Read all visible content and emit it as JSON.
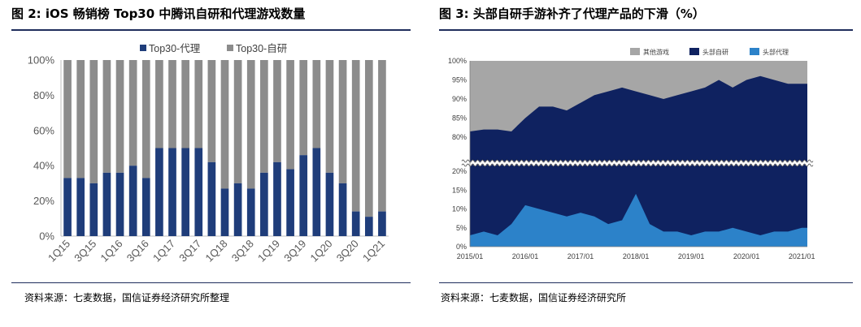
{
  "left": {
    "title": "图 2:  iOS 畅销榜 Top30 中腾讯自研和代理游戏数量",
    "source": "资料来源：七麦数据，国信证券经济研究所整理",
    "colors": {
      "agency": "#1f3d7a",
      "self": "#8c8c8c"
    }
  },
  "right": {
    "title": "图 3:  头部自研手游补齐了代理产品的下滑（%）",
    "source": "资料来源：七麦数据，国信证券经济研究所",
    "colors": {
      "other": "#a6a6a6",
      "self": "#0f2260",
      "agency": "#2c82c9"
    }
  },
  "chart_data": [
    {
      "type": "bar",
      "stacked": true,
      "categories": [
        "1Q15",
        "2Q15",
        "3Q15",
        "4Q15",
        "1Q16",
        "2Q16",
        "3Q16",
        "4Q16",
        "1Q17",
        "2Q17",
        "3Q17",
        "4Q17",
        "1Q18",
        "2Q18",
        "3Q18",
        "4Q18",
        "1Q19",
        "2Q19",
        "3Q19",
        "4Q19",
        "1Q20",
        "2Q20",
        "3Q20",
        "4Q20",
        "1Q21"
      ],
      "x_tick_labels": [
        "1Q15",
        "3Q15",
        "1Q16",
        "3Q16",
        "1Q17",
        "3Q17",
        "1Q18",
        "3Q18",
        "1Q19",
        "3Q19",
        "1Q20",
        "3Q20",
        "1Q21"
      ],
      "series": [
        {
          "name": "Top30-代理",
          "values": [
            33,
            33,
            30,
            36,
            36,
            40,
            33,
            50,
            50,
            50,
            50,
            42,
            27,
            30,
            27,
            36,
            42,
            38,
            46,
            50,
            36,
            30,
            14,
            11,
            14
          ]
        },
        {
          "name": "Top30-自研",
          "values": [
            67,
            67,
            70,
            64,
            64,
            60,
            67,
            50,
            50,
            50,
            50,
            58,
            73,
            70,
            73,
            64,
            58,
            62,
            54,
            50,
            64,
            70,
            86,
            89,
            86
          ]
        }
      ],
      "y_ticks": [
        "0%",
        "20%",
        "40%",
        "60%",
        "80%",
        "100%"
      ],
      "ylim": [
        0,
        100
      ],
      "legend": "top"
    },
    {
      "type": "area",
      "stacked": true,
      "broken_axis": true,
      "x_tick_labels": [
        "2015/01",
        "2016/01",
        "2017/01",
        "2018/01",
        "2019/01",
        "2020/01",
        "2021/01"
      ],
      "y_ticks_upper": [
        "80%",
        "85%",
        "90%",
        "95%",
        "100%"
      ],
      "y_ticks_lower": [
        "0%",
        "5%",
        "10%",
        "15%",
        "20%"
      ],
      "legend": "top",
      "legend_labels": [
        "其他游戏",
        "头部自研",
        "头部代理"
      ],
      "x": [
        2015.0,
        2015.25,
        2015.5,
        2015.75,
        2016.0,
        2016.25,
        2016.5,
        2016.75,
        2017.0,
        2017.25,
        2017.5,
        2017.75,
        2018.0,
        2018.25,
        2018.5,
        2018.75,
        2019.0,
        2019.25,
        2019.5,
        2019.75,
        2020.0,
        2020.25,
        2020.5,
        2020.75,
        2021.0,
        2021.1
      ],
      "series": [
        {
          "name": "头部代理",
          "values": [
            3,
            4,
            3,
            6,
            11,
            10,
            9,
            8,
            9,
            8,
            6,
            7,
            14,
            6,
            4,
            4,
            3,
            4,
            4,
            5,
            4,
            3,
            4,
            4,
            5,
            5
          ]
        },
        {
          "name": "头部自研",
          "values": [
            81.5,
            82,
            82,
            81.5,
            85,
            88,
            88,
            87,
            89,
            91,
            92,
            93,
            92,
            91,
            90,
            91,
            92,
            93,
            95,
            93,
            95,
            96,
            95,
            94,
            94,
            94
          ]
        }
      ]
    }
  ]
}
